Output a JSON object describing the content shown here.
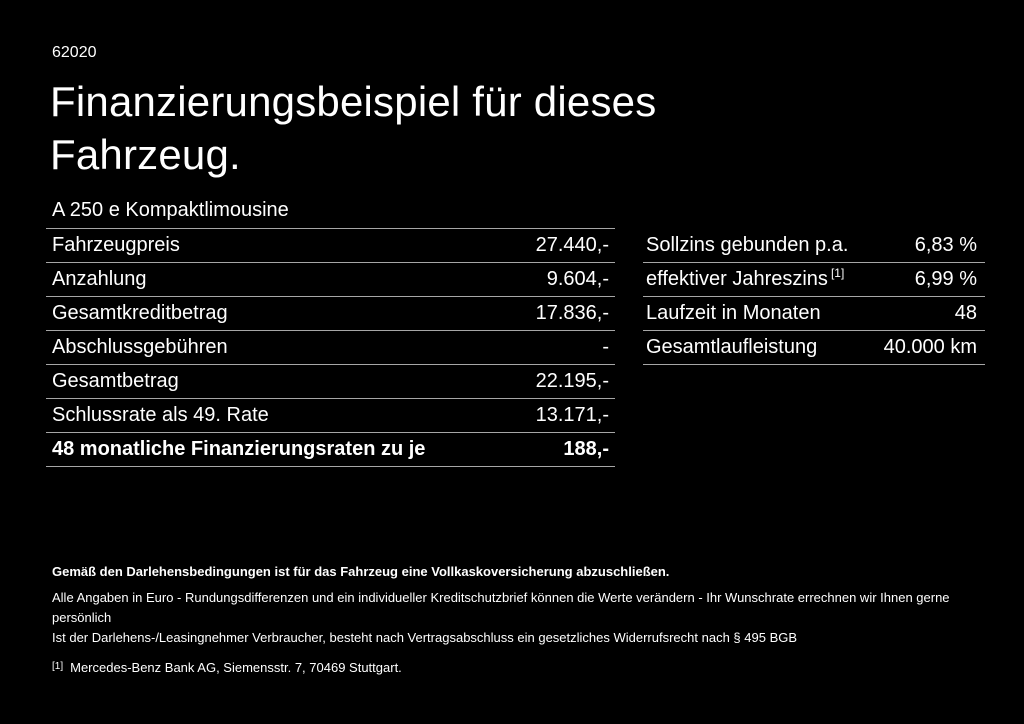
{
  "page": {
    "doc_number": "62020",
    "title": "Finanzierungsbeispiel für dieses Fahrzeug.",
    "subtitle": "A 250 e Kompaktlimousine"
  },
  "left_table": {
    "rows": [
      {
        "label": "Fahrzeugpreis",
        "value": "27.440,-"
      },
      {
        "label": "Anzahlung",
        "value": "9.604,-"
      },
      {
        "label": "Gesamtkreditbetrag",
        "value": "17.836,-"
      },
      {
        "label": "Abschlussgebühren",
        "value": "-"
      },
      {
        "label": "Gesamtbetrag",
        "value": "22.195,-"
      },
      {
        "label": "Schlussrate als 49. Rate",
        "value": "13.171,-"
      },
      {
        "label": "48 monatliche Finanzierungsraten zu je",
        "value": "188,-"
      }
    ]
  },
  "right_table": {
    "rows": [
      {
        "label": "Sollzins gebunden p.a.",
        "value": "6,83 %"
      },
      {
        "label": "effektiver Jahreszins",
        "sup": "[1]",
        "value": "6,99 %"
      },
      {
        "label": "Laufzeit in Monaten",
        "value": "48"
      },
      {
        "label": "Gesamtlaufleistung",
        "value": "40.000 km"
      }
    ]
  },
  "footer": {
    "insurance_note": "Gemäß den Darlehensbedingungen ist für das Fahrzeug eine Vollkaskoversicherung abzuschließen.",
    "disclaimer_line1": "Alle Angaben in Euro - Rundungsdifferenzen und ein individueller Kreditschutzbrief können die Werte verändern - Ihr Wunschrate errechnen wir Ihnen gerne persönlich",
    "disclaimer_line2": "Ist der Darlehens-/Leasingnehmer Verbraucher, besteht nach Vertragsabschluss ein gesetzliches Widerrufsrecht nach § 495 BGB",
    "footnote_marker": "[1]",
    "footnote_text": "Mercedes-Benz Bank AG, Siemensstr. 7, 70469 Stuttgart."
  },
  "colors": {
    "background": "#000000",
    "text": "#ffffff",
    "divider": "#a6a6a6"
  }
}
